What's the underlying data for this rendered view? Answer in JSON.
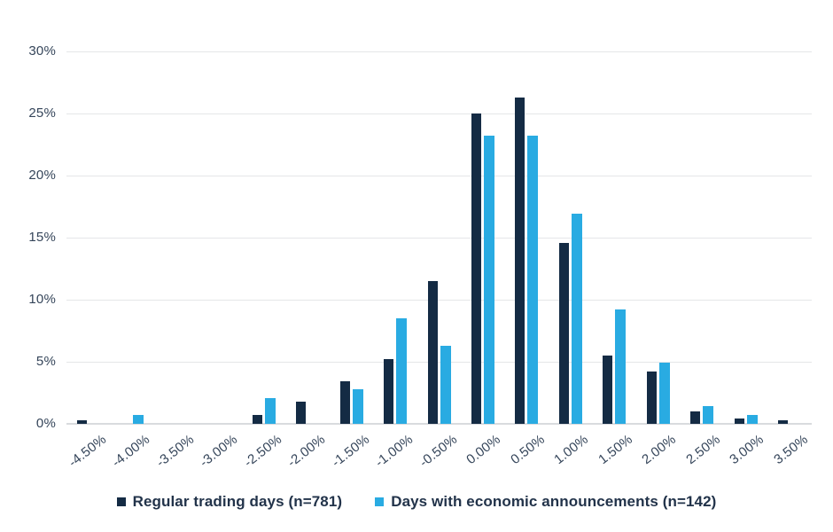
{
  "chart_data": {
    "type": "bar",
    "title": "",
    "subtitle": "",
    "categories": [
      "-4.50%",
      "-4.00%",
      "-3.50%",
      "-3.00%",
      "-2.50%",
      "-2.00%",
      "-1.50%",
      "-1.00%",
      "-0.50%",
      "0.00%",
      "0.50%",
      "1.00%",
      "1.50%",
      "2.00%",
      "2.50%",
      "3.00%",
      "3.50%"
    ],
    "series": [
      {
        "name": "Regular trading days (n=781)",
        "color": "#142B44",
        "values": [
          0.3,
          0,
          0,
          0,
          0.7,
          1.8,
          3.4,
          5.2,
          11.5,
          25.0,
          26.3,
          14.6,
          5.5,
          4.2,
          1.0,
          0.4,
          0.3
        ]
      },
      {
        "name": "Days with economic announcements (n=142)",
        "color": "#29ABE2",
        "values": [
          0,
          0.7,
          0,
          0,
          2.1,
          0,
          2.8,
          8.5,
          6.3,
          23.2,
          23.2,
          16.9,
          9.2,
          4.9,
          1.4,
          0.7,
          0
        ]
      }
    ],
    "xlabel": "",
    "ylabel": "",
    "ylim": [
      0,
      30
    ],
    "ytick_step": 5,
    "ytick_labels": [
      "0%",
      "5%",
      "10%",
      "15%",
      "20%",
      "25%",
      "30%"
    ],
    "grid": true,
    "legend_position": "bottom"
  },
  "colors": {
    "series1": "#142B44",
    "series2": "#29ABE2",
    "gridline": "#E5E6E8",
    "axis_line": "#D9DBDE",
    "tick_text": "#35455A",
    "legend_text": "#22334A",
    "background": "#FFFFFF"
  }
}
